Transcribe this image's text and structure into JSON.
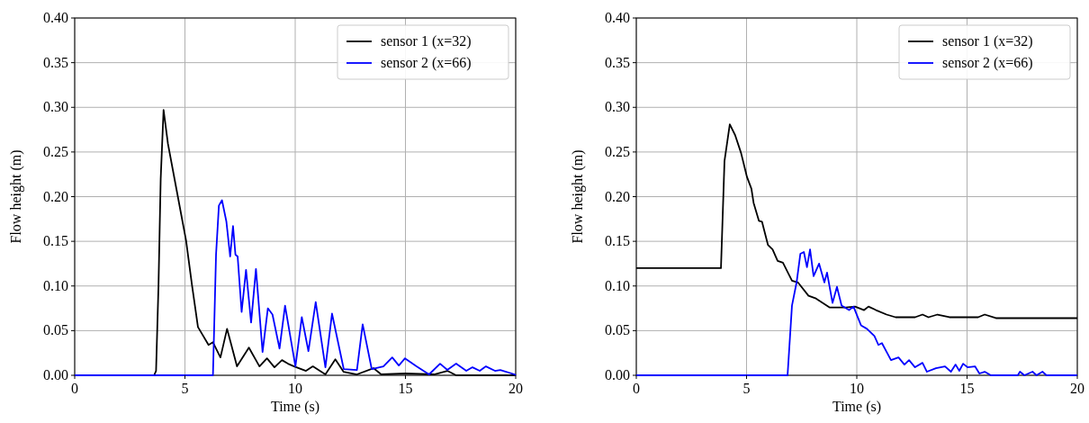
{
  "chart_data": [
    {
      "type": "line",
      "xlabel": "Time (s)",
      "ylabel": "Flow height (m)",
      "xlim": [
        0,
        20
      ],
      "ylim": [
        0,
        0.4
      ],
      "xticks": [
        0,
        5,
        10,
        15,
        20
      ],
      "yticks": [
        {
          "value": 0,
          "label": "0.00"
        },
        {
          "value": 0.05,
          "label": "0.05"
        },
        {
          "value": 0.1,
          "label": "0.10"
        },
        {
          "value": 0.15,
          "label": "0.15"
        },
        {
          "value": 0.2,
          "label": "0.20"
        },
        {
          "value": 0.25,
          "label": "0.25"
        },
        {
          "value": 0.3,
          "label": "0.30"
        },
        {
          "value": 0.35,
          "label": "0.35"
        },
        {
          "value": 0.4,
          "label": "0.40"
        }
      ],
      "grid": true,
      "legend": "top right",
      "series": [
        {
          "name": "sensor 1 (x=32)",
          "color": "#000000",
          "x": [
            0,
            3.6,
            3.69,
            3.8,
            3.9,
            4.03,
            4.23,
            4.64,
            5.05,
            5.32,
            5.59,
            6.07,
            6.27,
            6.61,
            6.91,
            7.36,
            7.9,
            8.38,
            8.72,
            9.06,
            9.4,
            9.67,
            9.95,
            10.49,
            10.8,
            11.37,
            11.82,
            12.19,
            12.8,
            13.55,
            13.9,
            15,
            16.3,
            16.9,
            17.3,
            20
          ],
          "values": [
            0,
            0,
            0.005,
            0.1,
            0.22,
            0.297,
            0.259,
            0.205,
            0.151,
            0.101,
            0.054,
            0.034,
            0.037,
            0.02,
            0.052,
            0.01,
            0.031,
            0.01,
            0.019,
            0.009,
            0.017,
            0.013,
            0.01,
            0.005,
            0.01,
            0.001,
            0.018,
            0.004,
            0.001,
            0.008,
            0.001,
            0.002,
            0.001,
            0.005,
            0,
            0
          ]
        },
        {
          "name": "sensor 2 (x=66)",
          "color": "#0000ff",
          "x": [
            0,
            6.27,
            6.41,
            6.54,
            6.68,
            6.88,
            7.05,
            7.18,
            7.29,
            7.39,
            7.57,
            7.77,
            8.0,
            8.22,
            8.52,
            8.76,
            8.97,
            9.29,
            9.54,
            10.01,
            10.3,
            10.6,
            10.93,
            11.37,
            11.67,
            12.2,
            12.8,
            13.06,
            13.47,
            14.0,
            14.4,
            14.7,
            14.98,
            15.5,
            16.07,
            16.57,
            16.9,
            17.3,
            17.76,
            18.04,
            18.37,
            18.65,
            19.06,
            19.3,
            19.95,
            20
          ],
          "values": [
            0,
            0,
            0.135,
            0.19,
            0.196,
            0.172,
            0.133,
            0.167,
            0.135,
            0.133,
            0.071,
            0.118,
            0.059,
            0.119,
            0.026,
            0.075,
            0.068,
            0.03,
            0.078,
            0.01,
            0.065,
            0.027,
            0.082,
            0.009,
            0.069,
            0.007,
            0.006,
            0.057,
            0.007,
            0.01,
            0.02,
            0.011,
            0.019,
            0.01,
            0.001,
            0.013,
            0.006,
            0.013,
            0.005,
            0.009,
            0.005,
            0.01,
            0.005,
            0.006,
            0.001,
            0
          ]
        }
      ]
    },
    {
      "type": "line",
      "xlabel": "Time (s)",
      "ylabel": "Flow height (m)",
      "xlim": [
        0,
        20
      ],
      "ylim": [
        0,
        0.4
      ],
      "xticks": [
        0,
        5,
        10,
        15,
        20
      ],
      "yticks": [
        {
          "value": 0,
          "label": "0.00"
        },
        {
          "value": 0.05,
          "label": "0.05"
        },
        {
          "value": 0.1,
          "label": "0.10"
        },
        {
          "value": 0.15,
          "label": "0.15"
        },
        {
          "value": 0.2,
          "label": "0.20"
        },
        {
          "value": 0.25,
          "label": "0.25"
        },
        {
          "value": 0.3,
          "label": "0.30"
        },
        {
          "value": 0.35,
          "label": "0.35"
        },
        {
          "value": 0.4,
          "label": "0.40"
        }
      ],
      "grid": true,
      "legend": "top right",
      "series": [
        {
          "name": "sensor 1 (x=32)",
          "color": "#000000",
          "x": [
            0,
            3.84,
            4.0,
            4.24,
            4.48,
            4.75,
            5.02,
            5.22,
            5.32,
            5.56,
            5.7,
            5.97,
            6.18,
            6.41,
            6.65,
            7.06,
            7.33,
            7.81,
            8.15,
            8.76,
            9.24,
            9.51,
            9.92,
            10.33,
            10.53,
            10.87,
            11.35,
            11.76,
            12.64,
            12.98,
            13.25,
            13.66,
            14.2,
            15.5,
            15.8,
            16.31,
            20
          ],
          "values": [
            0.12,
            0.12,
            0.24,
            0.281,
            0.269,
            0.249,
            0.222,
            0.209,
            0.193,
            0.173,
            0.172,
            0.146,
            0.141,
            0.128,
            0.126,
            0.106,
            0.104,
            0.089,
            0.086,
            0.076,
            0.076,
            0.076,
            0.077,
            0.073,
            0.077,
            0.073,
            0.068,
            0.065,
            0.065,
            0.068,
            0.065,
            0.068,
            0.065,
            0.065,
            0.068,
            0.064,
            0.064
          ]
        },
        {
          "name": "sensor 2 (x=66)",
          "color": "#0000ff",
          "x": [
            0,
            6.86,
            7.06,
            7.27,
            7.44,
            7.6,
            7.74,
            7.88,
            8.04,
            8.29,
            8.53,
            8.65,
            8.9,
            9.1,
            9.31,
            9.65,
            9.85,
            10.19,
            10.46,
            10.8,
            10.98,
            11.14,
            11.55,
            11.89,
            12.16,
            12.37,
            12.64,
            12.98,
            13.18,
            13.59,
            14.0,
            14.27,
            14.48,
            14.65,
            14.82,
            15.02,
            15.36,
            15.56,
            15.8,
            16.08,
            17.3,
            17.4,
            17.6,
            17.97,
            18.15,
            18.42,
            18.6,
            20
          ],
          "values": [
            0,
            0,
            0.078,
            0.104,
            0.136,
            0.138,
            0.121,
            0.141,
            0.111,
            0.125,
            0.104,
            0.115,
            0.081,
            0.099,
            0.078,
            0.073,
            0.077,
            0.056,
            0.052,
            0.044,
            0.034,
            0.036,
            0.017,
            0.02,
            0.012,
            0.017,
            0.009,
            0.014,
            0.004,
            0.008,
            0.01,
            0.004,
            0.012,
            0.005,
            0.013,
            0.009,
            0.01,
            0.002,
            0.004,
            0,
            0,
            0.004,
            0,
            0.004,
            0,
            0.004,
            0,
            0
          ]
        }
      ]
    }
  ]
}
